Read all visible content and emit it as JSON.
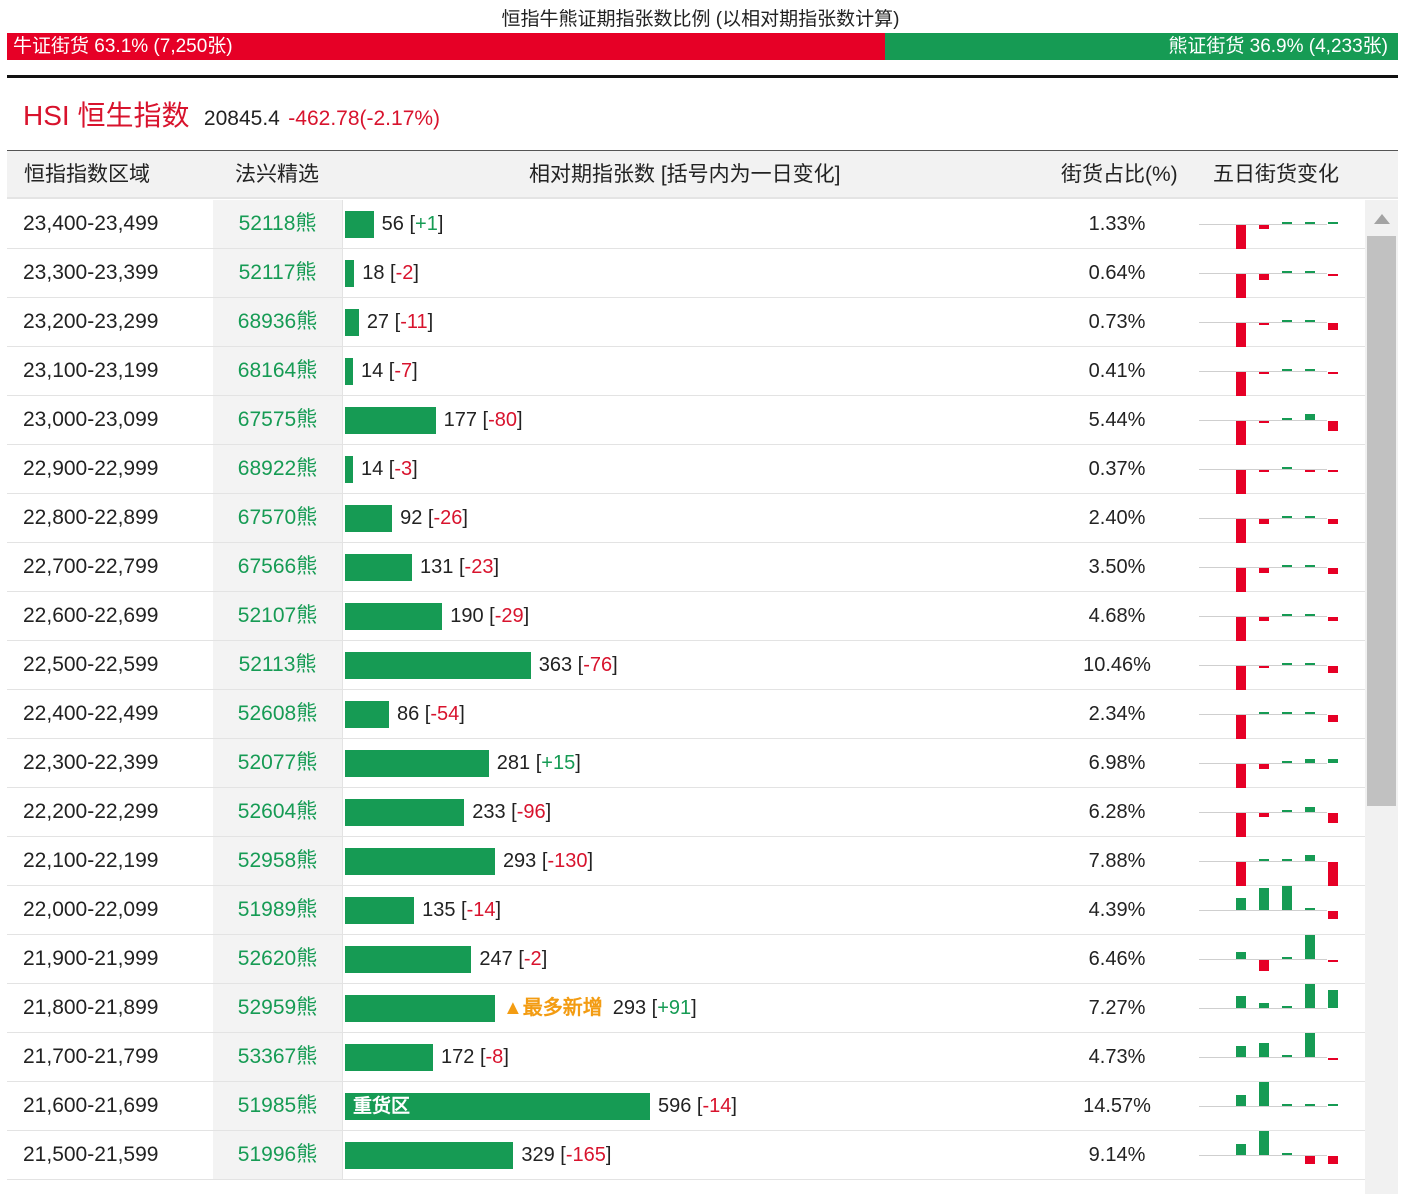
{
  "title": "恒指牛熊证期指张数比例 (以相对期指张数计算)",
  "ratio": {
    "bull_label": "牛证街货 63.1% (7,250张)",
    "bear_label": "熊证街货 36.9% (4,233张)",
    "bull_fraction": 0.631,
    "bull_color": "#e60026",
    "bear_color": "#169b54"
  },
  "index": {
    "name": "HSI 恒生指数",
    "price": "20845.4",
    "change": "-462.78(-2.17%)"
  },
  "table": {
    "headers": {
      "range": "恒指指数区域",
      "issuer": "法兴精选",
      "relative": "相对期指张数 [括号内为一日变化]",
      "share": "街货占比(%)",
      "five_day": "五日街货变化"
    },
    "rows": [
      {
        "range": "23,400-23,499",
        "code": "52118熊",
        "value": 56,
        "change": "+1",
        "pct": "1.33%",
        "spark": [
          -1.0,
          -0.15,
          0,
          0.1,
          0
        ]
      },
      {
        "range": "23,300-23,399",
        "code": "52117熊",
        "value": 18,
        "change": "-2",
        "pct": "0.64%",
        "spark": [
          -1.0,
          -0.25,
          0,
          0,
          -0.05
        ]
      },
      {
        "range": "23,200-23,299",
        "code": "68936熊",
        "value": 27,
        "change": "-11",
        "pct": "0.73%",
        "spark": [
          -1.0,
          -0.1,
          0,
          0.1,
          -0.3
        ]
      },
      {
        "range": "23,100-23,199",
        "code": "68164熊",
        "value": 14,
        "change": "-7",
        "pct": "0.41%",
        "spark": [
          -1.0,
          -0.08,
          0,
          0.05,
          -0.08
        ]
      },
      {
        "range": "23,000-23,099",
        "code": "67575熊",
        "value": 177,
        "change": "-80",
        "pct": "5.44%",
        "spark": [
          -1.0,
          -0.1,
          0,
          0.25,
          -0.4
        ]
      },
      {
        "range": "22,900-22,999",
        "code": "68922熊",
        "value": 14,
        "change": "-3",
        "pct": "0.37%",
        "spark": [
          -1.0,
          -0.1,
          0,
          -0.05,
          -0.05
        ]
      },
      {
        "range": "22,800-22,899",
        "code": "67570熊",
        "value": 92,
        "change": "-26",
        "pct": "2.40%",
        "spark": [
          -1.0,
          -0.2,
          0,
          0,
          -0.2
        ]
      },
      {
        "range": "22,700-22,799",
        "code": "67566熊",
        "value": 131,
        "change": "-23",
        "pct": "3.50%",
        "spark": [
          -1.0,
          -0.2,
          0,
          0.05,
          -0.25
        ]
      },
      {
        "range": "22,600-22,699",
        "code": "52107熊",
        "value": 190,
        "change": "-29",
        "pct": "4.68%",
        "spark": [
          -1.0,
          -0.15,
          0,
          0.1,
          -0.15
        ]
      },
      {
        "range": "22,500-22,599",
        "code": "52113熊",
        "value": 363,
        "change": "-76",
        "pct": "10.46%",
        "spark": [
          -1.0,
          -0.05,
          0,
          0.05,
          -0.3
        ]
      },
      {
        "range": "22,400-22,499",
        "code": "52608熊",
        "value": 86,
        "change": "-54",
        "pct": "2.34%",
        "spark": [
          -1.0,
          0,
          0,
          0.05,
          -0.3
        ]
      },
      {
        "range": "22,300-22,399",
        "code": "52077熊",
        "value": 281,
        "change": "+15",
        "pct": "6.98%",
        "spark": [
          -1.0,
          -0.2,
          0,
          0.15,
          0.15
        ]
      },
      {
        "range": "22,200-22,299",
        "code": "52604熊",
        "value": 233,
        "change": "-96",
        "pct": "6.28%",
        "spark": [
          -1.0,
          -0.15,
          0,
          0.2,
          -0.4
        ]
      },
      {
        "range": "22,100-22,199",
        "code": "52958熊",
        "value": 293,
        "change": "-130",
        "pct": "7.88%",
        "spark": [
          -1.0,
          0,
          0.05,
          0.25,
          -1.0
        ]
      },
      {
        "range": "22,000-22,099",
        "code": "51989熊",
        "value": 135,
        "change": "-14",
        "pct": "4.39%",
        "spark": [
          0.5,
          0.9,
          1.0,
          0,
          -0.35
        ]
      },
      {
        "range": "21,900-21,999",
        "code": "52620熊",
        "value": 247,
        "change": "-2",
        "pct": "6.46%",
        "spark": [
          0.3,
          -0.45,
          0,
          1.0,
          -0.1
        ]
      },
      {
        "range": "21,800-21,899",
        "code": "52959熊",
        "value": 293,
        "change": "+91",
        "pct": "7.27%",
        "spark": [
          0.5,
          0.2,
          0,
          1.0,
          0.75
        ],
        "tag": "▲最多新增"
      },
      {
        "range": "21,700-21,799",
        "code": "53367熊",
        "value": 172,
        "change": "-8",
        "pct": "4.73%",
        "spark": [
          0.45,
          0.6,
          0,
          1.0,
          -0.1
        ]
      },
      {
        "range": "21,600-21,699",
        "code": "51985熊",
        "value": 596,
        "change": "-14",
        "pct": "14.57%",
        "spark": [
          0.45,
          1.0,
          0,
          0.1,
          0
        ],
        "heavy": "重货区"
      },
      {
        "range": "21,500-21,599",
        "code": "51996熊",
        "value": 329,
        "change": "-165",
        "pct": "9.14%",
        "spark": [
          0.45,
          1.0,
          0,
          -0.35,
          -0.35
        ]
      }
    ]
  },
  "colors": {
    "bear_bar": "#169b54",
    "spark_up": "#169b54",
    "spark_down": "#e60026",
    "negative_text": "#d8132d",
    "highlight": "#f39c12"
  }
}
